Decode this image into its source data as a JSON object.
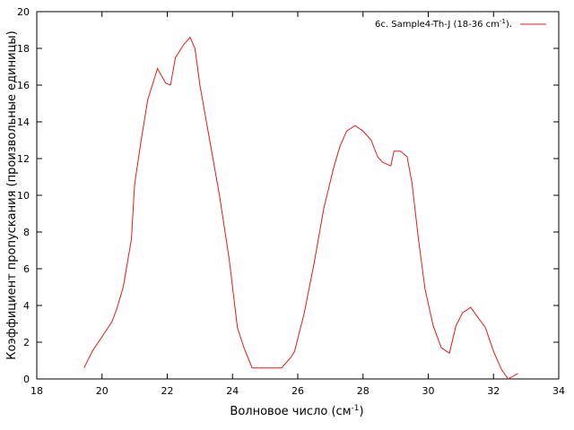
{
  "chart_data": {
    "type": "line",
    "xlabel_main": "Волновое число (см",
    "xlabel_sup": "-1",
    "xlabel_end": ")",
    "ylabel": "Коэффициент пропускания (произвольные единицы)",
    "xlim": [
      18,
      34
    ],
    "ylim": [
      0,
      20
    ],
    "x_ticks": [
      "18",
      "20",
      "22",
      "24",
      "26",
      "28",
      "30",
      "32",
      "34"
    ],
    "y_ticks": [
      "0",
      "2",
      "4",
      "6",
      "8",
      "10",
      "12",
      "14",
      "16",
      "18",
      "20"
    ],
    "grid": false,
    "legend_position": "top-right",
    "series": [
      {
        "name_main": "6c. Sample4-Th-J (18-36 cm",
        "name_sup": "-1",
        "name_end": ").",
        "color": "#e41a1c",
        "x": [
          19.45,
          19.7,
          20.0,
          20.3,
          20.45,
          20.65,
          20.9,
          21.0,
          21.2,
          21.4,
          21.7,
          21.95,
          22.1,
          22.25,
          22.5,
          22.7,
          22.85,
          23.0,
          23.3,
          23.6,
          23.9,
          24.15,
          24.35,
          24.6,
          24.9,
          25.2,
          25.5,
          25.8,
          25.9,
          26.2,
          26.5,
          26.8,
          27.1,
          27.3,
          27.5,
          27.75,
          28.0,
          28.25,
          28.45,
          28.6,
          28.85,
          28.95,
          29.15,
          29.35,
          29.5,
          29.7,
          29.9,
          30.15,
          30.4,
          30.65,
          30.85,
          31.05,
          31.3,
          31.5,
          31.75,
          32.0,
          32.25,
          32.45,
          32.75
        ],
        "y": [
          0.6,
          1.5,
          2.3,
          3.1,
          3.8,
          5.0,
          7.6,
          10.6,
          13.0,
          15.2,
          16.9,
          16.1,
          16.0,
          17.5,
          18.2,
          18.6,
          18.0,
          16.0,
          13.0,
          10.0,
          6.5,
          2.8,
          1.7,
          0.6,
          0.6,
          0.6,
          0.6,
          1.2,
          1.5,
          3.6,
          6.3,
          9.3,
          11.5,
          12.7,
          13.5,
          13.8,
          13.5,
          13.0,
          12.1,
          11.8,
          11.6,
          12.4,
          12.4,
          12.1,
          10.7,
          7.6,
          4.9,
          2.9,
          1.7,
          1.4,
          2.9,
          3.6,
          3.9,
          3.4,
          2.8,
          1.5,
          0.5,
          0.0,
          0.3
        ]
      }
    ]
  }
}
